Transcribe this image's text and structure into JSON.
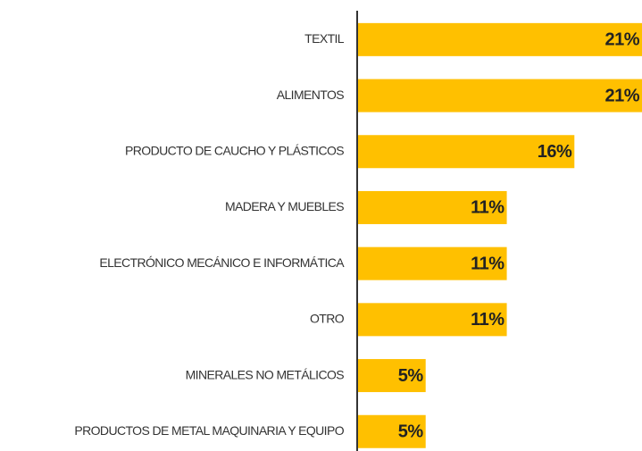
{
  "chart_data": {
    "type": "hbar",
    "categories": [
      "TEXTIL",
      "ALIMENTOS",
      "PRODUCTO DE CAUCHO Y PLÁSTICOS",
      "MADERA Y MUEBLES",
      "ELECTRÓNICO MECÁNICO E INFORMÁTICA",
      "OTRO",
      "MINERALES NO METÁLICOS",
      "PRODUCTOS DE METAL MAQUINARIA Y EQUIPO"
    ],
    "values": [
      21,
      21,
      16,
      11,
      11,
      11,
      5,
      5
    ],
    "value_labels": [
      "21%",
      "21%",
      "16%",
      "11%",
      "11%",
      "11%",
      "5%",
      "5%"
    ],
    "color": "#ffc000"
  }
}
